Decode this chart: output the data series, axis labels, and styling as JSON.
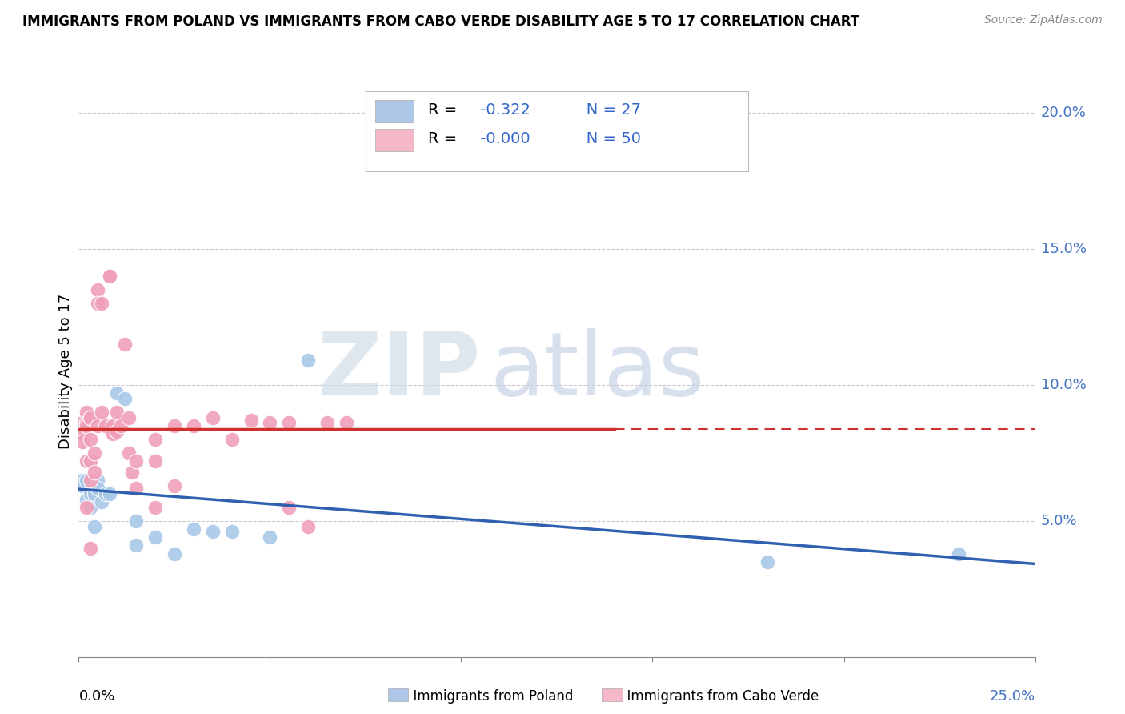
{
  "title": "IMMIGRANTS FROM POLAND VS IMMIGRANTS FROM CABO VERDE DISABILITY AGE 5 TO 17 CORRELATION CHART",
  "source": "Source: ZipAtlas.com",
  "ylabel": "Disability Age 5 to 17",
  "xlim": [
    0.0,
    0.25
  ],
  "ylim": [
    0.0,
    0.21
  ],
  "yticks": [
    0.0,
    0.05,
    0.1,
    0.15,
    0.2
  ],
  "poland_R": "-0.322",
  "poland_N": "27",
  "caboverde_R": "-0.000",
  "caboverde_N": "50",
  "poland_legend_color": "#aec6e8",
  "caboverde_legend_color": "#f4b8c8",
  "poland_scatter_color": "#a8c8e8",
  "caboverde_scatter_color": "#f0a0b8",
  "trend_poland_color": "#3060b0",
  "trend_caboverde_color": "#d03030",
  "watermark_zip_color": "#d0dce8",
  "watermark_atlas_color": "#c8d4e8",
  "background_color": "#ffffff",
  "grid_color": "#c8c8d0",
  "right_label_color": "#4472c4",
  "poland_x": [
    0.001,
    0.001,
    0.002,
    0.002,
    0.003,
    0.003,
    0.003,
    0.004,
    0.004,
    0.005,
    0.005,
    0.006,
    0.007,
    0.008,
    0.01,
    0.012,
    0.015,
    0.015,
    0.02,
    0.025,
    0.03,
    0.035,
    0.04,
    0.05,
    0.06,
    0.18,
    0.23
  ],
  "poland_y": [
    0.063,
    0.065,
    0.058,
    0.065,
    0.055,
    0.072,
    0.06,
    0.06,
    0.048,
    0.065,
    0.062,
    0.057,
    0.06,
    0.06,
    0.097,
    0.095,
    0.041,
    0.05,
    0.044,
    0.038,
    0.047,
    0.046,
    0.046,
    0.044,
    0.109,
    0.035,
    0.038
  ],
  "caboverde_x": [
    0.001,
    0.001,
    0.001,
    0.002,
    0.002,
    0.002,
    0.002,
    0.002,
    0.003,
    0.003,
    0.003,
    0.003,
    0.003,
    0.003,
    0.004,
    0.004,
    0.005,
    0.005,
    0.005,
    0.006,
    0.006,
    0.007,
    0.008,
    0.008,
    0.009,
    0.009,
    0.01,
    0.01,
    0.011,
    0.012,
    0.013,
    0.013,
    0.014,
    0.015,
    0.015,
    0.02,
    0.02,
    0.02,
    0.025,
    0.025,
    0.03,
    0.035,
    0.04,
    0.045,
    0.05,
    0.055,
    0.055,
    0.06,
    0.065,
    0.07
  ],
  "caboverde_y": [
    0.086,
    0.082,
    0.079,
    0.09,
    0.086,
    0.085,
    0.072,
    0.055,
    0.088,
    0.088,
    0.08,
    0.072,
    0.065,
    0.04,
    0.075,
    0.068,
    0.135,
    0.13,
    0.085,
    0.13,
    0.09,
    0.085,
    0.14,
    0.14,
    0.085,
    0.082,
    0.09,
    0.083,
    0.085,
    0.115,
    0.088,
    0.075,
    0.068,
    0.062,
    0.072,
    0.08,
    0.072,
    0.055,
    0.085,
    0.063,
    0.085,
    0.088,
    0.08,
    0.087,
    0.086,
    0.086,
    0.055,
    0.048,
    0.086,
    0.086
  ]
}
